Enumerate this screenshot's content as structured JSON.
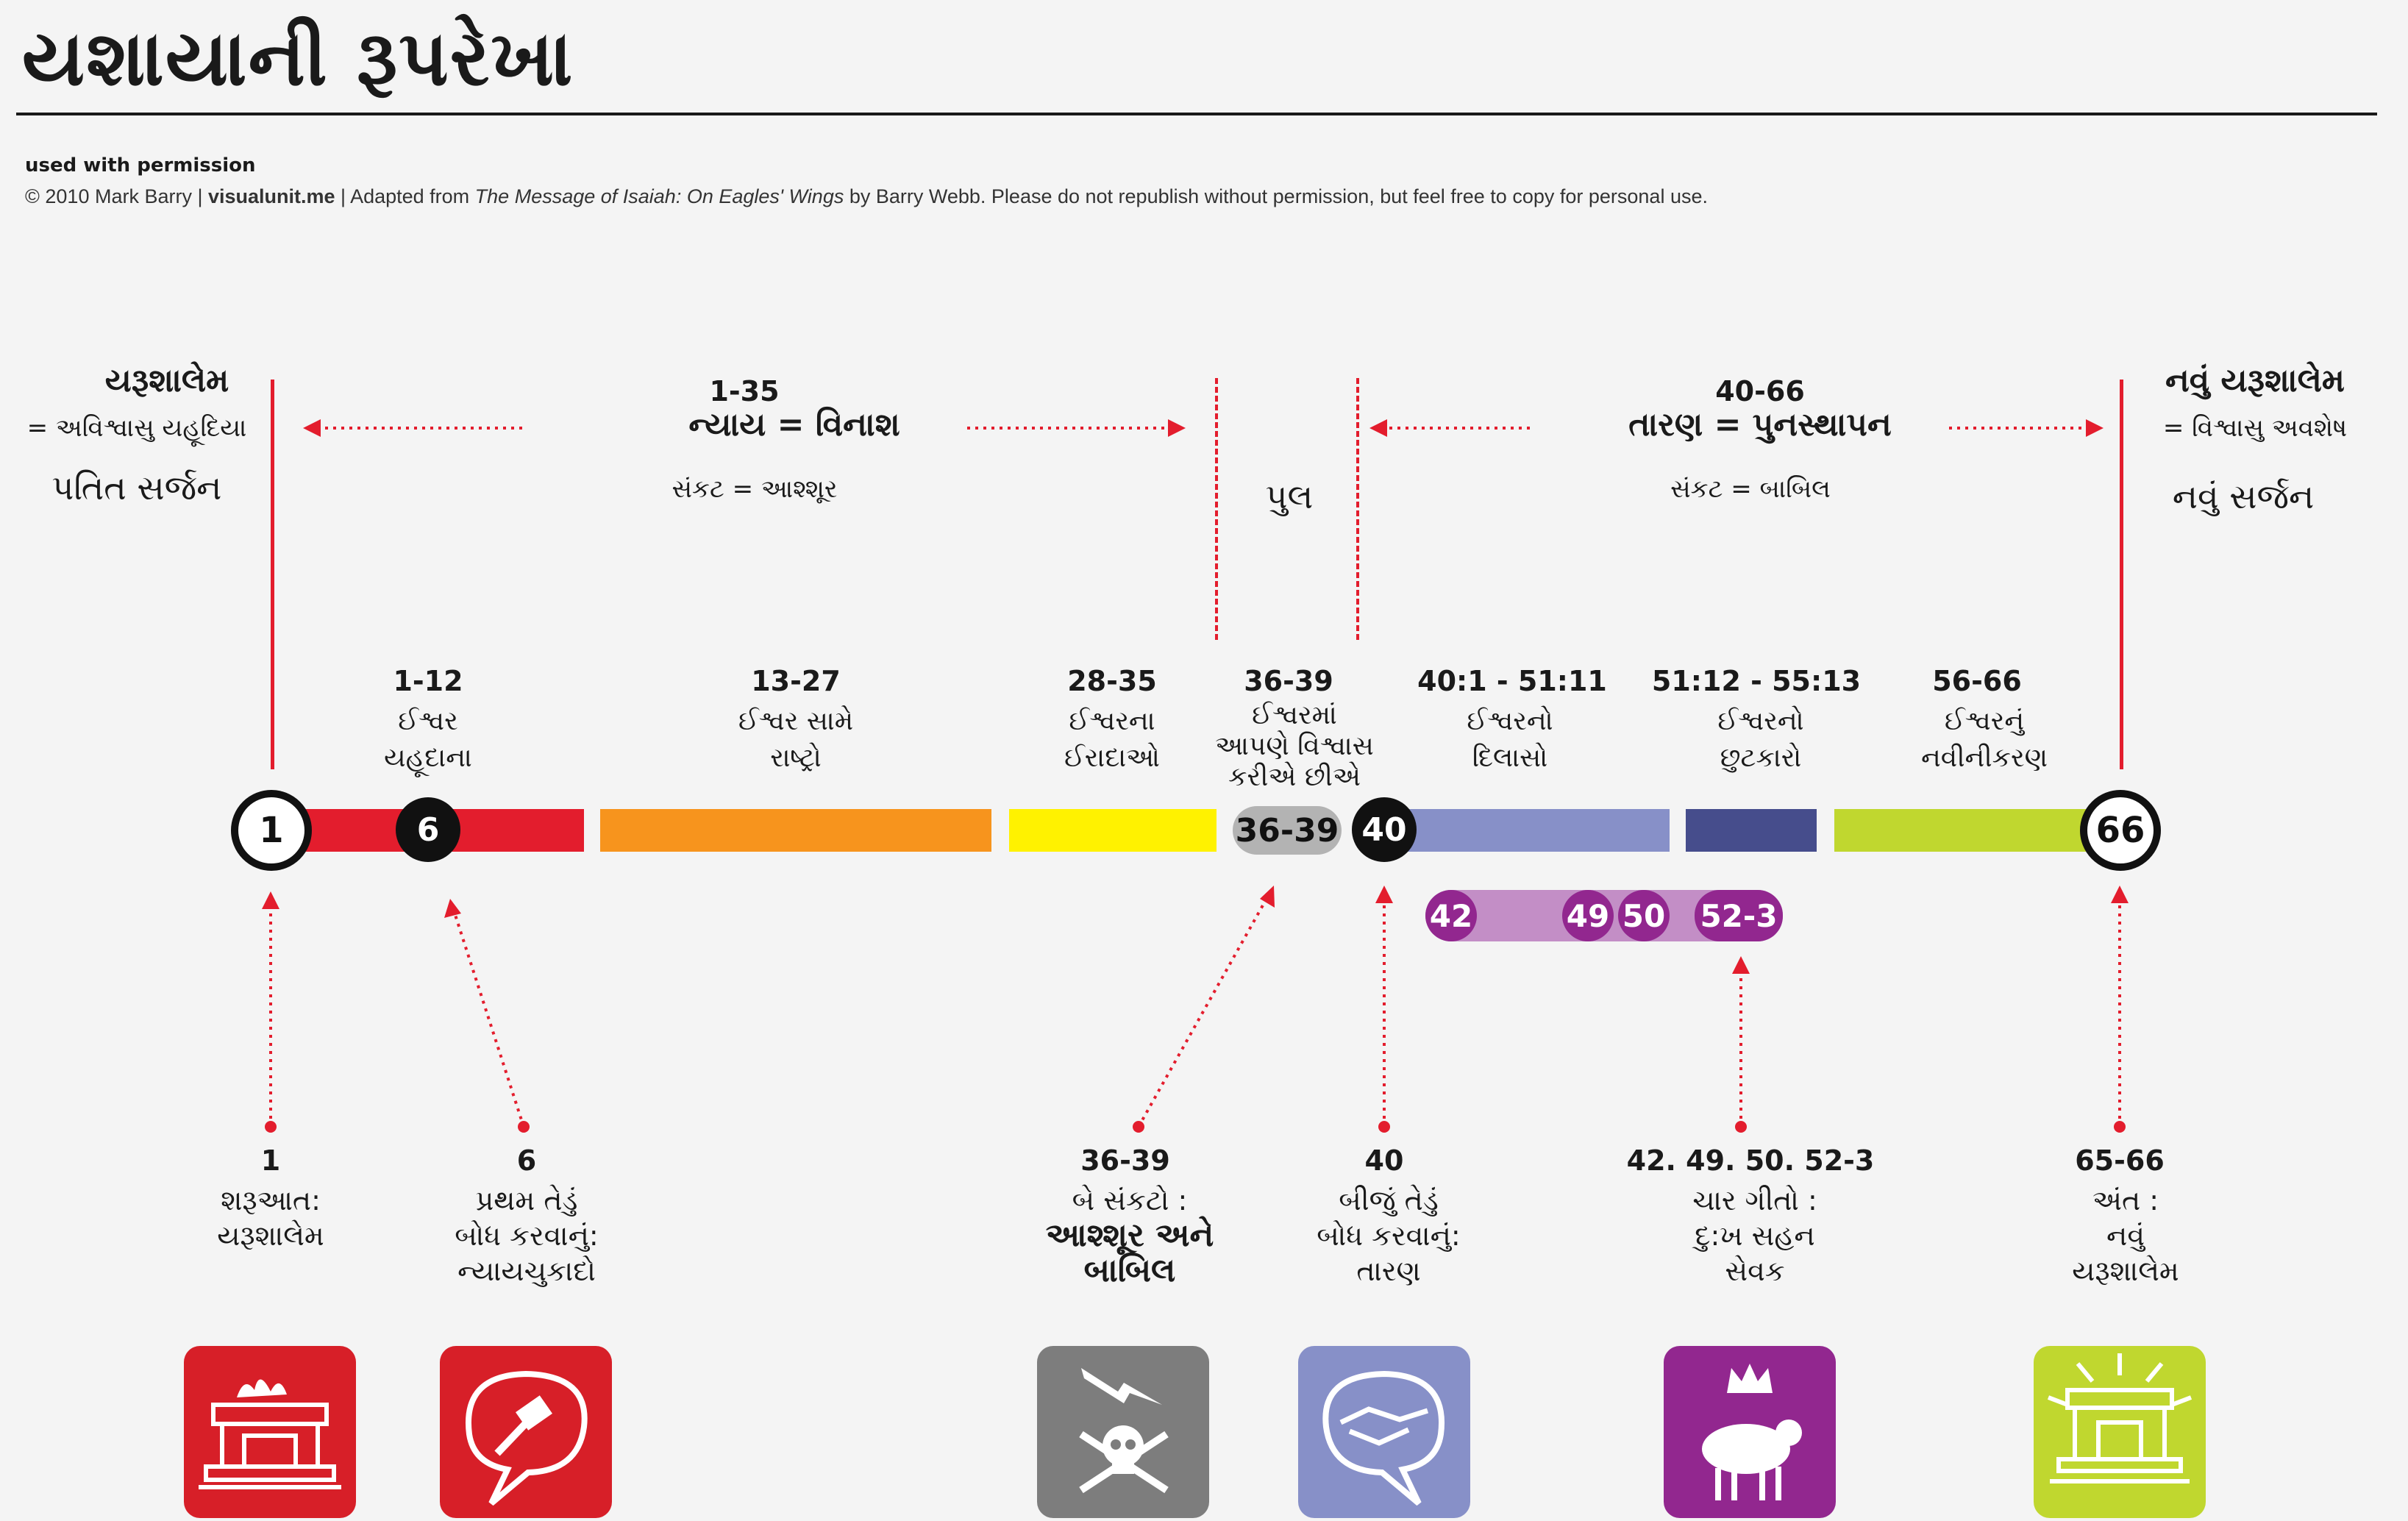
{
  "title": "યશાયાની રૂપરેખા",
  "permission": "used with permission",
  "credit": {
    "prefix": "© 2010 Mark Barry  |  ",
    "site": "visualunit.me",
    "mid": "  |  Adapted from ",
    "book": "The Message of Isaiah: On Eagles' Wings",
    "suffix": " by Barry Webb. Please do not republish without permission, but feel free to copy for personal use."
  },
  "top": {
    "left": {
      "head": "યરૂશાલેમ",
      "sub": "= અવિશ્વાસુ યહૂદિયા",
      "big": "પતિત સર્જન"
    },
    "judgment": {
      "num": "1-35",
      "head": "ન્યાય = વિનાશ",
      "sub": "સંકટ = આશ્શૂર"
    },
    "bridge": {
      "label": "પુલ"
    },
    "salvation": {
      "num": "40-66",
      "head": "તારણ = પુનસ્થાપન",
      "sub": "સંકટ = બાબિલ"
    },
    "right": {
      "head": "નવું યરૂશાલેમ",
      "sub": "= વિશ્વાસુ અવશેષ",
      "big": "નવું સર્જન"
    }
  },
  "segments": [
    {
      "num": "1-12",
      "l1": "ઈશ્વર",
      "l2": "યહૂદાના",
      "color": "#e31d2d"
    },
    {
      "num": "13-27",
      "l1": "ઈશ્વર સામે",
      "l2": "રાષ્ટ્રો",
      "color": "#f7941d"
    },
    {
      "num": "28-35",
      "l1": "ઈશ્વરના",
      "l2": "ઈરાદાઓ",
      "color": "#fff200"
    },
    {
      "num": "36-39",
      "l1": "ઈશ્વરમાં",
      "l2": "આપણે વિશ્વાસ",
      "l3": "કરીએ છીએ",
      "color": "#b3b3b3"
    },
    {
      "num": "40:1 - 51:11",
      "l1": "ઈશ્વરનો",
      "l2": "દિલાસો",
      "color": "#8790c8"
    },
    {
      "num": "51:12 - 55:13",
      "l1": "ઈશ્વરનો",
      "l2": "છુટકારો",
      "color": "#464d8c"
    },
    {
      "num": "56-66",
      "l1": "ઈશ્વરનું",
      "l2": "નવીનીકરણ",
      "color": "#c0d72f"
    }
  ],
  "nodes": {
    "n1": "1",
    "n6": "6",
    "pill": "36-39",
    "n40": "40",
    "n66": "66"
  },
  "subnodes": {
    "a": "42",
    "b": "49",
    "c": "50",
    "d": "52-3"
  },
  "bottom": [
    {
      "num": "1",
      "l1": "શરૂઆત:",
      "l2": "યરૂશાલેમ",
      "l3": "",
      "icon": "temple-fire-icon",
      "color": "#d71f28"
    },
    {
      "num": "6",
      "l1": "પ્રથમ તેડું",
      "l2": "બોધ કરવાનું:",
      "l3": "ન્યાયચુકાદો",
      "icon": "gavel-speech-icon",
      "color": "#d71f28"
    },
    {
      "num": "36-39",
      "l1": "બે સંકટો :",
      "l2": "આશ્શૂર અને",
      "l3": "બાબિલ",
      "icon": "skull-lightning-icon",
      "color": "#7d7d7d"
    },
    {
      "num": "40",
      "l1": "બીજું તેડું",
      "l2": "બોધ કરવાનું:",
      "l3": "તારણ",
      "icon": "handshake-speech-icon",
      "color": "#8790c8"
    },
    {
      "num": "42. 49. 50. 52-3",
      "l1": "ચાર ગીતો :",
      "l2": "દુ:ખ સહન",
      "l3": "સેવક",
      "icon": "crown-lamb-icon",
      "color": "#92278f"
    },
    {
      "num": "65-66",
      "l1": "અંત  :",
      "l2": "નવું",
      "l3": "યરૂશાલેમ",
      "icon": "radiant-temple-icon",
      "color": "#c0d72f"
    }
  ],
  "colors": {
    "accent": "#e31d2d",
    "subbar": "#c38ec6",
    "subnode": "#92278f"
  }
}
